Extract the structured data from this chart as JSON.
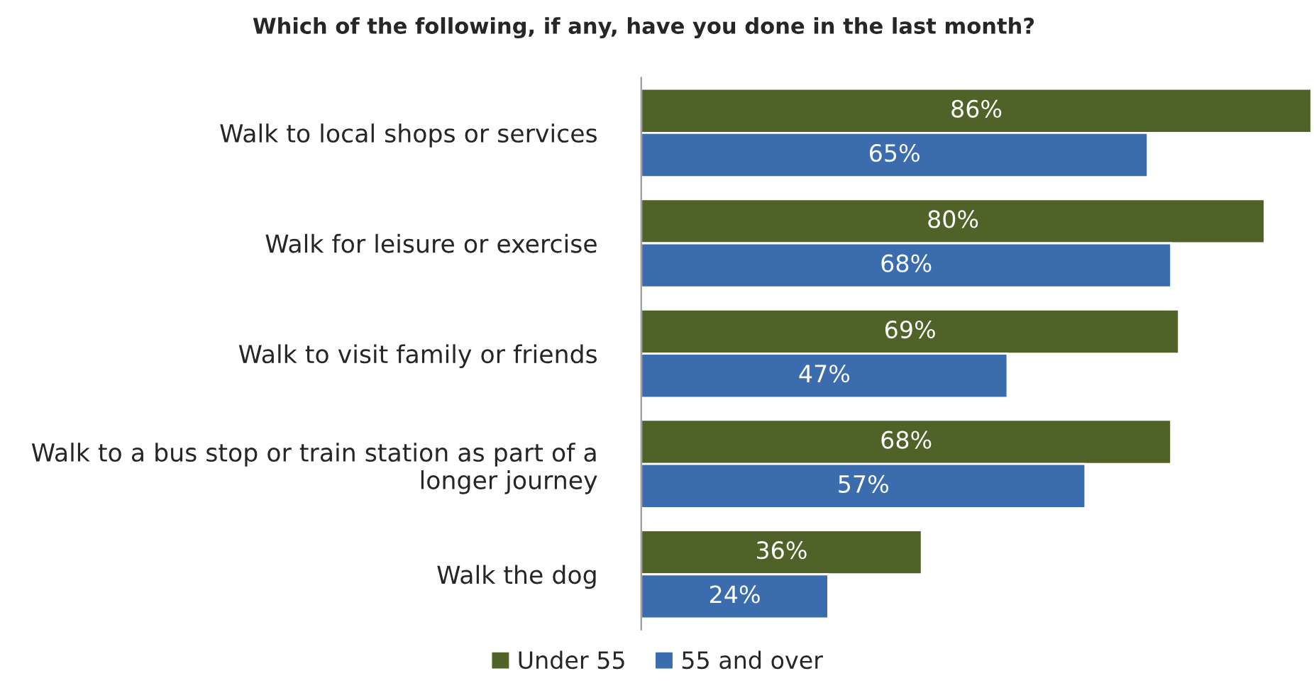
{
  "chart_data": {
    "type": "bar",
    "orientation": "horizontal",
    "title": "Which of the following, if any, have you done in the last month?",
    "categories": [
      "Walk to local shops or services",
      "Walk for leisure or exercise",
      "Walk to visit family or friends",
      "Walk to a bus stop or train station as part of a longer journey",
      "Walk the dog"
    ],
    "series": [
      {
        "name": "Under 55",
        "color": "#4f6228",
        "values": [
          86,
          80,
          69,
          68,
          36
        ],
        "value_labels": [
          "86%",
          "80%",
          "69%",
          "68%",
          "36%"
        ]
      },
      {
        "name": "55 and over",
        "color": "#3a6cae",
        "values": [
          65,
          68,
          47,
          57,
          24
        ],
        "value_labels": [
          "65%",
          "68%",
          "47%",
          "57%",
          "24%"
        ]
      }
    ],
    "legend": "bottom",
    "grid": false
  }
}
